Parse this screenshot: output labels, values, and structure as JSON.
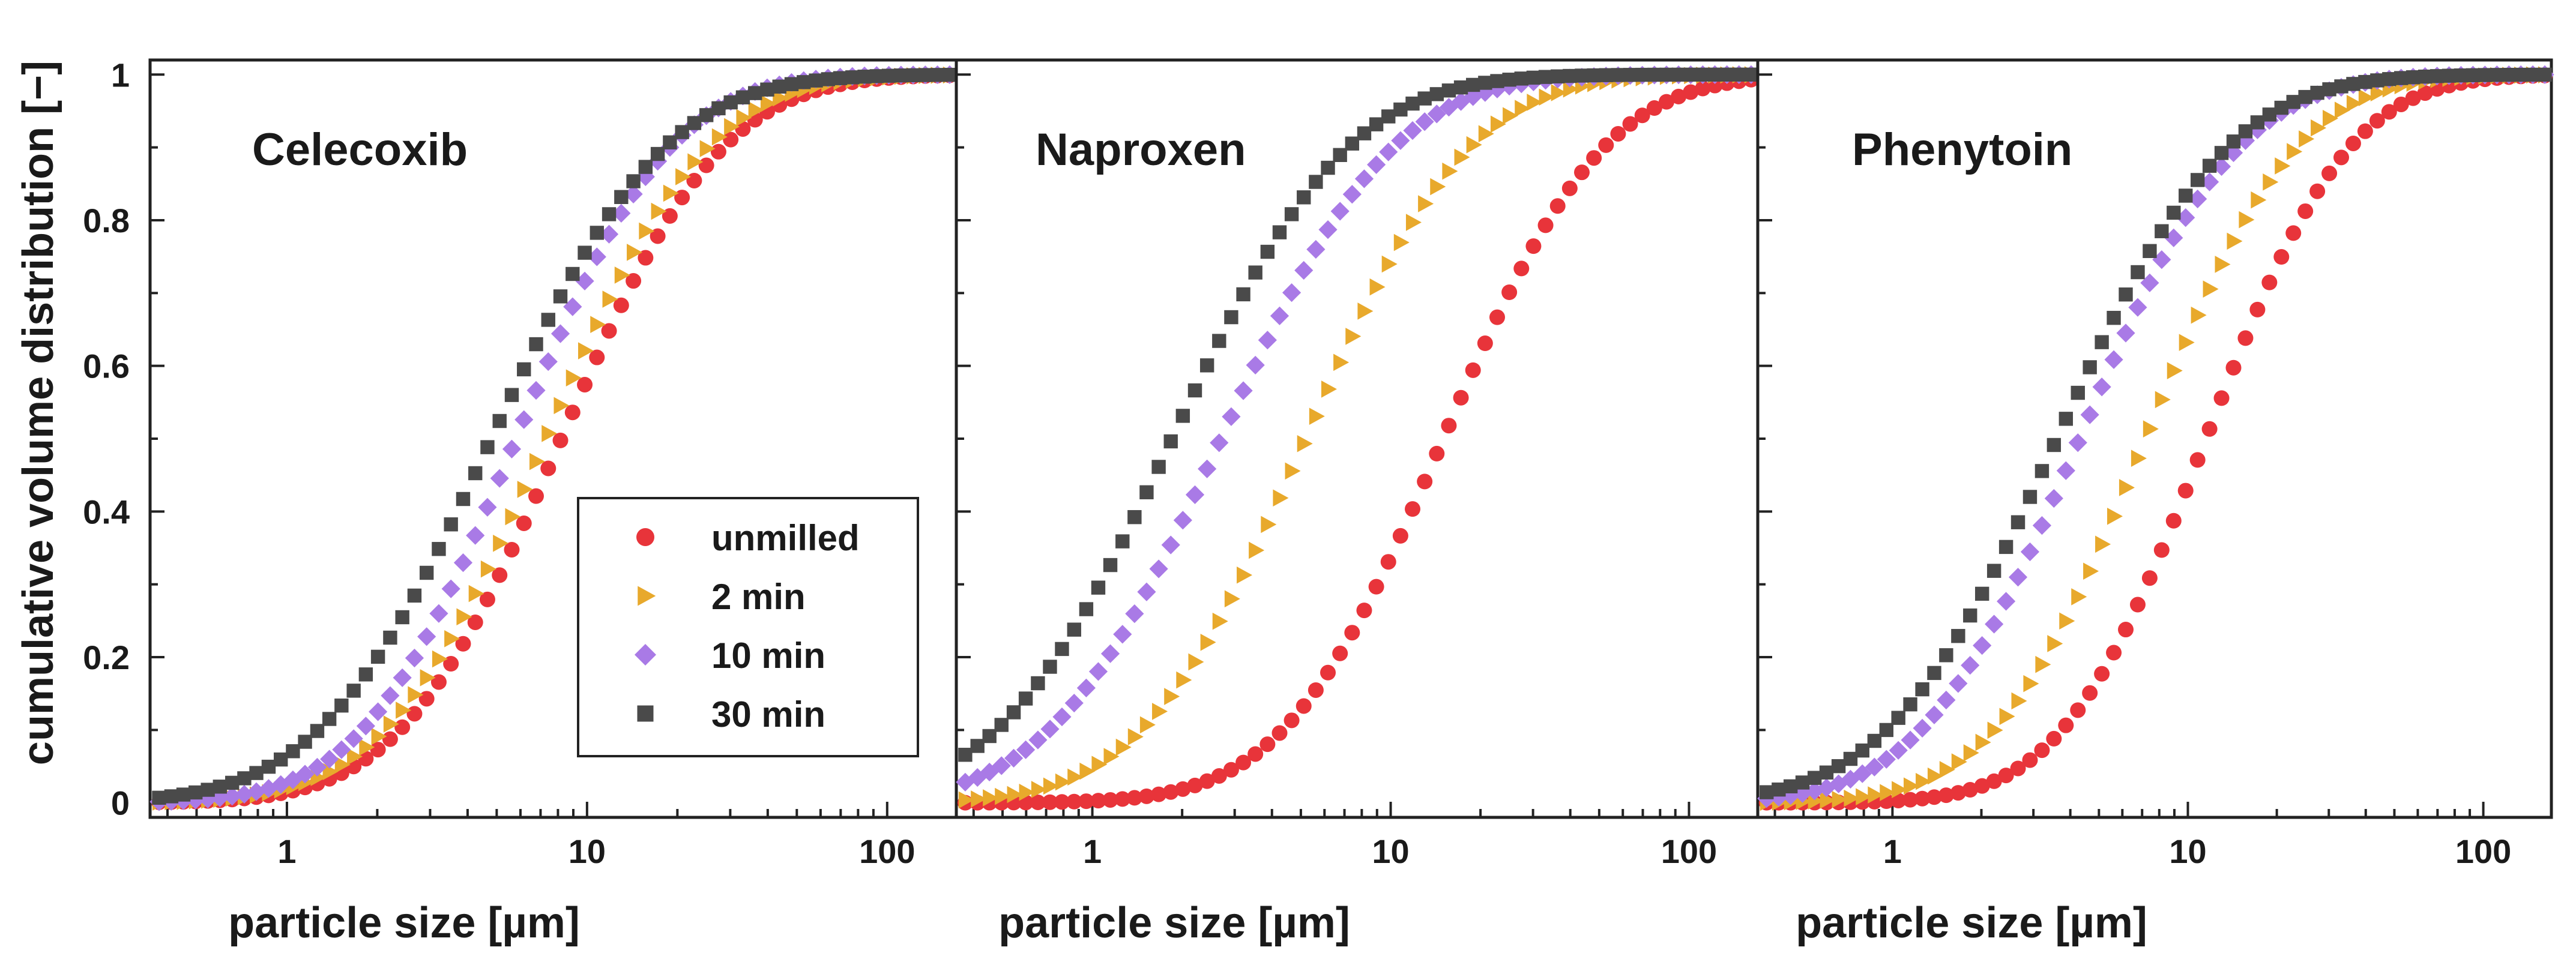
{
  "chart_data": {
    "type": "scatter",
    "ylabel": "cumulative volume distribution [−]",
    "xlabel": "particle size [µm]",
    "xscale": "log",
    "xlim": [
      0.35,
      170
    ],
    "ylim": [
      -0.02,
      1.02
    ],
    "x_ticks": [
      1,
      10,
      100
    ],
    "x_tick_labels": [
      "1",
      "10",
      "100"
    ],
    "y_ticks": [
      0,
      0.2,
      0.4,
      0.6,
      0.8,
      1
    ],
    "y_tick_labels": [
      "0",
      "0.2",
      "0.4",
      "0.6",
      "0.8",
      "1"
    ],
    "legend": {
      "position": "lower-right of first panel",
      "entries": [
        {
          "label": "unmilled",
          "color": "#e8343a",
          "marker": "circle"
        },
        {
          "label": "2 min",
          "color": "#e8a92c",
          "marker": "triangle-right"
        },
        {
          "label": "10 min",
          "color": "#a97ae6",
          "marker": "diamond"
        },
        {
          "label": "30 min",
          "color": "#4a4a4a",
          "marker": "square"
        }
      ]
    },
    "panels": [
      {
        "title": "Celecoxib",
        "series": [
          {
            "name": "unmilled",
            "median": 8.2,
            "spread": 0.42
          },
          {
            "name": "2 min",
            "median": 7.3,
            "spread": 0.42
          },
          {
            "name": "10 min",
            "median": 5.8,
            "spread": 0.4
          },
          {
            "name": "30 min",
            "median": 4.8,
            "spread": 0.45
          }
        ]
      },
      {
        "title": "Naproxen",
        "series": [
          {
            "name": "unmilled",
            "median": 15.0,
            "spread": 0.42
          },
          {
            "name": "2 min",
            "median": 5.2,
            "spread": 0.43
          },
          {
            "name": "10 min",
            "median": 2.7,
            "spread": 0.45
          },
          {
            "name": "30 min",
            "median": 1.85,
            "spread": 0.46
          }
        ]
      },
      {
        "title": "Phenytoin",
        "series": [
          {
            "name": "unmilled",
            "median": 11.5,
            "spread": 0.38
          },
          {
            "name": "2 min",
            "median": 7.2,
            "spread": 0.4
          },
          {
            "name": "10 min",
            "median": 4.3,
            "spread": 0.42
          },
          {
            "name": "30 min",
            "median": 3.6,
            "spread": 0.45
          }
        ]
      }
    ],
    "x_samples": [
      0.375,
      0.412,
      0.452,
      0.496,
      0.545,
      0.598,
      0.657,
      0.721,
      0.791,
      0.869,
      0.954,
      1.047,
      1.149,
      1.262,
      1.385,
      1.52,
      1.669,
      1.832,
      2.011,
      2.208,
      2.424,
      2.661,
      2.921,
      3.207,
      3.52,
      3.865,
      4.243,
      4.657,
      5.113,
      5.613,
      6.162,
      6.765,
      7.427,
      8.153,
      8.951,
      9.826,
      10.787,
      11.842,
      13.0,
      14.272,
      15.668,
      17.2,
      18.883,
      20.73,
      22.757,
      24.983,
      27.427,
      30.11,
      33.055,
      36.289,
      39.838,
      43.735,
      48.013,
      52.709,
      57.865,
      63.525,
      69.739,
      76.561,
      84.05,
      92.271,
      101.3,
      111.2,
      122.1,
      134.0,
      147.1,
      161.5
    ]
  }
}
